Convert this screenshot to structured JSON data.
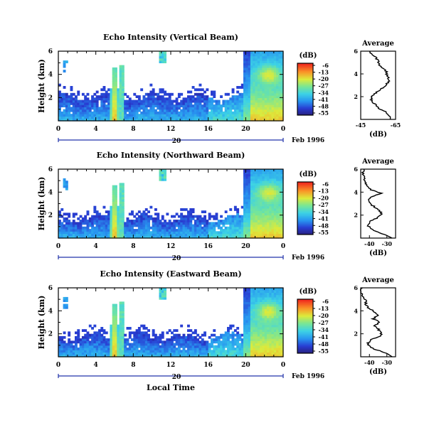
{
  "chart_data": [
    {
      "type": "heatmap",
      "title": "Echo Intensity (Vertical Beam)",
      "ylabel": "Height (km)",
      "yticks": [
        "6",
        "4",
        "2"
      ],
      "ylim": [
        0,
        6
      ],
      "xticks": [
        "0",
        "4",
        "8",
        "12",
        "16",
        "20",
        "0"
      ],
      "xlim": [
        0,
        24
      ],
      "date_label": "20",
      "date_suffix": "Feb 1996",
      "colorbar": {
        "unit": "(dB)",
        "ticks": [
          "-6",
          "-13",
          "-20",
          "-27",
          "-34",
          "-41",
          "-48",
          "-55"
        ]
      },
      "features": {
        "low_layer_top_km": 2.1,
        "burst_hours": [
          5.5,
          6.5
        ],
        "storm_start_hour": 19.8,
        "storm_core_hour": 22.5,
        "storm_core_height_km": 4.0
      },
      "average": {
        "title": "Average",
        "xlabel": "(dB)",
        "yticks": [
          "6",
          "4",
          "2"
        ],
        "xticks": [
          "-45",
          "-65"
        ],
        "xlim": [
          -45,
          -65
        ],
        "profile": [
          [
            0.0,
            -62
          ],
          [
            0.3,
            -62
          ],
          [
            0.6,
            -60
          ],
          [
            0.9,
            -56
          ],
          [
            1.2,
            -54
          ],
          [
            1.5,
            -52
          ],
          [
            1.8,
            -51
          ],
          [
            2.1,
            -52
          ],
          [
            2.4,
            -54
          ],
          [
            2.7,
            -57
          ],
          [
            3.0,
            -59
          ],
          [
            3.3,
            -61
          ],
          [
            3.6,
            -61
          ],
          [
            3.9,
            -60
          ],
          [
            4.2,
            -60
          ],
          [
            4.5,
            -58
          ],
          [
            4.8,
            -56
          ],
          [
            5.1,
            -55
          ],
          [
            5.4,
            -54
          ],
          [
            5.7,
            -52
          ],
          [
            6.0,
            -50
          ]
        ]
      }
    },
    {
      "type": "heatmap",
      "title": "Echo Intensity (Northward Beam)",
      "ylabel": "Height (km)",
      "yticks": [
        "6",
        "4",
        "2"
      ],
      "ylim": [
        0,
        6
      ],
      "xticks": [
        "0",
        "4",
        "8",
        "12",
        "16",
        "20",
        "0"
      ],
      "xlim": [
        0,
        24
      ],
      "date_label": "20",
      "date_suffix": "Feb 1996",
      "colorbar": {
        "unit": "(dB)",
        "ticks": [
          "-6",
          "-13",
          "-20",
          "-27",
          "-34",
          "-41",
          "-48",
          "-55"
        ]
      },
      "features": {
        "low_layer_top_km": 1.8,
        "burst_hours": [
          5.5,
          6.5
        ],
        "storm_start_hour": 19.8,
        "storm_core_hour": 22.5,
        "storm_core_height_km": 4.0
      },
      "average": {
        "title": "Average",
        "xlabel": "(dB)",
        "yticks": [
          "6",
          "4",
          "2"
        ],
        "xticks": [
          "-40",
          "-30"
        ],
        "xlim": [
          -45,
          -25
        ],
        "profile": [
          [
            0.0,
            -27
          ],
          [
            0.3,
            -31
          ],
          [
            0.6,
            -37
          ],
          [
            0.9,
            -40
          ],
          [
            1.2,
            -41
          ],
          [
            1.5,
            -39
          ],
          [
            1.8,
            -35
          ],
          [
            2.1,
            -33
          ],
          [
            2.4,
            -34
          ],
          [
            2.7,
            -37
          ],
          [
            3.0,
            -40
          ],
          [
            3.3,
            -41
          ],
          [
            3.6,
            -39
          ],
          [
            3.9,
            -33
          ],
          [
            4.2,
            -39
          ],
          [
            4.5,
            -41
          ],
          [
            4.8,
            -42
          ],
          [
            5.1,
            -43
          ],
          [
            5.4,
            -43
          ],
          [
            5.7,
            -44
          ],
          [
            6.0,
            -43
          ]
        ]
      }
    },
    {
      "type": "heatmap",
      "title": "Echo Intensity (Eastward Beam)",
      "ylabel": "Height (km)",
      "yticks": [
        "6",
        "4",
        "2"
      ],
      "ylim": [
        0,
        6
      ],
      "xticks": [
        "0",
        "4",
        "8",
        "12",
        "16",
        "20",
        "0"
      ],
      "xlim": [
        0,
        24
      ],
      "date_label": "20",
      "date_suffix": "Feb 1996",
      "xlabel": "Local Time",
      "colorbar": {
        "unit": "(dB)",
        "ticks": [
          "-6",
          "-13",
          "-20",
          "-27",
          "-34",
          "-41",
          "-48",
          "-55"
        ]
      },
      "features": {
        "low_layer_top_km": 1.8,
        "burst_hours": [
          5.5,
          6.5
        ],
        "storm_start_hour": 19.8,
        "storm_core_hour": 22.5,
        "storm_core_height_km": 4.0
      },
      "average": {
        "title": "Average",
        "xlabel": "(dB)",
        "yticks": [
          "6",
          "4",
          "2"
        ],
        "xticks": [
          "-40",
          "-30"
        ],
        "xlim": [
          -45,
          -25
        ],
        "profile": [
          [
            0.0,
            -27
          ],
          [
            0.3,
            -30
          ],
          [
            0.6,
            -36
          ],
          [
            0.9,
            -40
          ],
          [
            1.2,
            -41
          ],
          [
            1.5,
            -39
          ],
          [
            1.8,
            -34
          ],
          [
            2.1,
            -33
          ],
          [
            2.4,
            -35
          ],
          [
            2.7,
            -37
          ],
          [
            3.0,
            -34
          ],
          [
            3.3,
            -38
          ],
          [
            3.6,
            -35
          ],
          [
            3.9,
            -37
          ],
          [
            4.2,
            -40
          ],
          [
            4.5,
            -42
          ],
          [
            4.8,
            -42
          ],
          [
            5.1,
            -43
          ],
          [
            5.4,
            -44
          ],
          [
            5.7,
            -45
          ],
          [
            6.0,
            -44
          ]
        ]
      }
    }
  ]
}
